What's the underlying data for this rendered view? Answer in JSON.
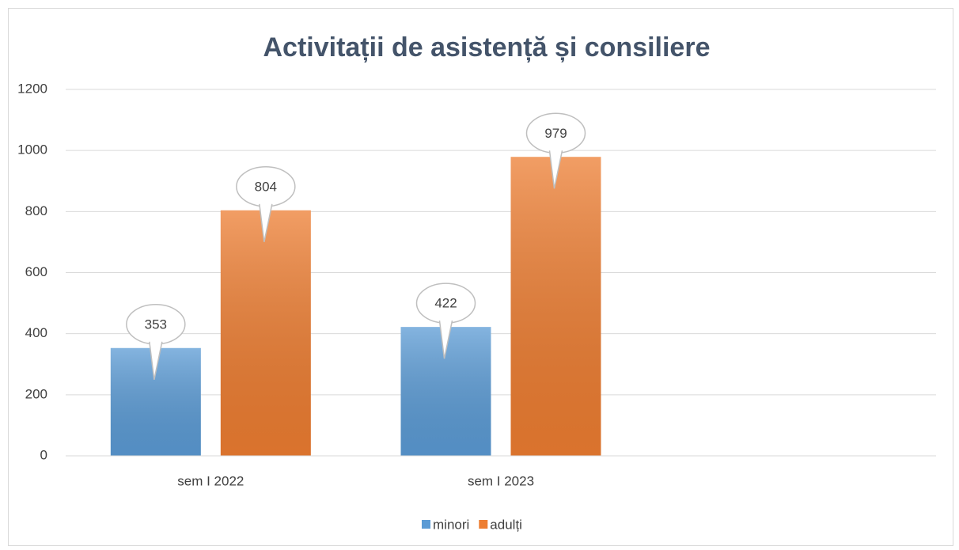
{
  "chart_data": {
    "type": "bar",
    "title": "Activitații de asistență și consiliere",
    "categories": [
      "sem I 2022",
      "sem I 2023",
      null
    ],
    "series": [
      {
        "name": "minori",
        "color": "#5b9bd5",
        "values": [
          353,
          422,
          null
        ]
      },
      {
        "name": "adulți",
        "color": "#ed7d31",
        "values": [
          804,
          979,
          null
        ]
      }
    ],
    "ylim": [
      0,
      1200
    ],
    "yticks": [
      0,
      200,
      400,
      600,
      800,
      1000,
      1200
    ],
    "grid": true,
    "legend": "bottom"
  }
}
